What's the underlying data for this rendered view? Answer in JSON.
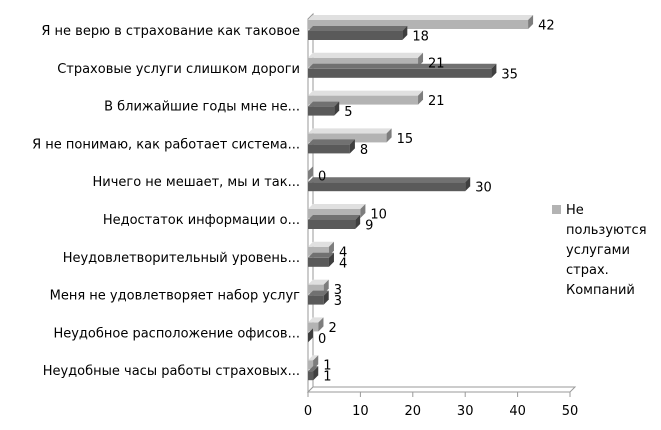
{
  "chart_data": {
    "type": "bar",
    "orientation": "horizontal",
    "style": "3d",
    "categories": [
      "Я не верю в страхование как таковое",
      "Страховые услуги слишком дороги",
      "В ближайшие годы мне не...",
      "Я не понимаю, как работает система...",
      "Ничего не мешает, мы и так...",
      "Недостаток информации о...",
      "Неудовлетворительный уровень...",
      "Меня не удовлетворяет набор услуг",
      "Неудобное расположение офисов...",
      "Неудобные часы работы страховых..."
    ],
    "series": [
      {
        "values": [
          18,
          35,
          5,
          8,
          30,
          9,
          4,
          3,
          0,
          1
        ],
        "color": "#5a5a5a"
      },
      {
        "name": "Не пользуются услугами страх. Компаний",
        "legend_lines": [
          "Не",
          "пользуются",
          "услугами",
          "страх.",
          "Компаний"
        ],
        "values": [
          42,
          21,
          21,
          15,
          0,
          10,
          4,
          3,
          2,
          1
        ],
        "color": "#b3b3b3"
      }
    ],
    "xlim": [
      0,
      50
    ],
    "xticks": [
      "0",
      "10",
      "20",
      "30",
      "40",
      "50"
    ],
    "grid": false,
    "legend_position": "right"
  }
}
